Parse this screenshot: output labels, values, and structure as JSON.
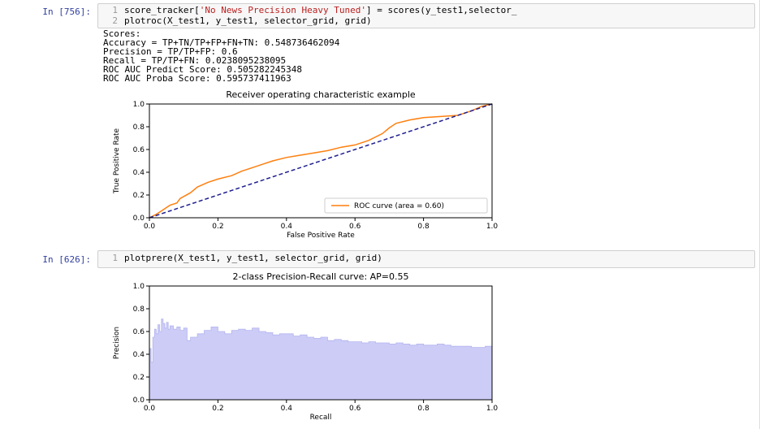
{
  "cell1": {
    "prompt": "In [756]:",
    "lines": [
      {
        "num": "1",
        "pre": "score_tracker[",
        "str": "'No News Precision Heavy Tuned'",
        "post": "] = scores(y_test1,selector_"
      },
      {
        "num": "2",
        "pre": "plotroc(X_test1, y_test1, selector_grid, grid)",
        "str": "",
        "post": ""
      }
    ],
    "output_lines": [
      "Scores:",
      "Accuracy = TP+TN/TP+FP+FN+TN: 0.548736462094",
      "Precision = TP/TP+FP: 0.6",
      "Recall = TP/TP+FN: 0.0238095238095",
      "ROC AUC Predict Score: 0.505282245348",
      "ROC AUC Proba Score: 0.595737411963"
    ]
  },
  "cell2": {
    "prompt": "In [626]:",
    "lines": [
      {
        "num": "1",
        "pre": "plotprere(X_test1, y_test1, selector_grid, grid)",
        "str": "",
        "post": ""
      }
    ]
  },
  "chart_data": [
    {
      "type": "line",
      "title": "Receiver operating characteristic example",
      "xlabel": "False Positive Rate",
      "ylabel": "True Positive Rate",
      "xlim": [
        0,
        1
      ],
      "ylim": [
        0,
        1
      ],
      "xticks": [
        "0.0",
        "0.2",
        "0.4",
        "0.6",
        "0.8",
        "1.0"
      ],
      "yticks": [
        "0.0",
        "0.2",
        "0.4",
        "0.6",
        "0.8",
        "1.0"
      ],
      "legend_position": "lower right",
      "grid": false,
      "series": [
        {
          "name": "ROC curve (area = 0.60)",
          "color": "#ff7f0e",
          "style": "solid",
          "x": [
            0,
            0.02,
            0.04,
            0.06,
            0.08,
            0.09,
            0.12,
            0.14,
            0.17,
            0.2,
            0.24,
            0.27,
            0.3,
            0.33,
            0.36,
            0.4,
            0.44,
            0.48,
            0.52,
            0.56,
            0.6,
            0.64,
            0.68,
            0.7,
            0.72,
            0.76,
            0.8,
            0.85,
            0.9,
            0.94,
            0.97,
            1.0
          ],
          "y": [
            0,
            0.03,
            0.07,
            0.11,
            0.13,
            0.17,
            0.22,
            0.27,
            0.31,
            0.34,
            0.37,
            0.41,
            0.44,
            0.47,
            0.5,
            0.53,
            0.55,
            0.57,
            0.59,
            0.62,
            0.64,
            0.68,
            0.74,
            0.79,
            0.83,
            0.86,
            0.88,
            0.89,
            0.9,
            0.94,
            0.98,
            1.0
          ]
        },
        {
          "name": "",
          "color": "#1f1f8f",
          "style": "dashed",
          "x": [
            0,
            1
          ],
          "y": [
            0,
            1
          ]
        }
      ]
    },
    {
      "type": "area",
      "title": "2-class Precision-Recall curve: AP=0.55",
      "xlabel": "Recall",
      "ylabel": "Precision",
      "xlim": [
        0,
        1
      ],
      "ylim": [
        0,
        1
      ],
      "xticks": [
        "0.0",
        "0.2",
        "0.4",
        "0.6",
        "0.8",
        "1.0"
      ],
      "yticks": [
        "0.0",
        "0.2",
        "0.4",
        "0.6",
        "0.8",
        "1.0"
      ],
      "grid": false,
      "series": [
        {
          "name": "",
          "color": "#ccccf7",
          "x": [
            0.0,
            0.005,
            0.01,
            0.015,
            0.02,
            0.025,
            0.03,
            0.035,
            0.04,
            0.045,
            0.05,
            0.055,
            0.06,
            0.07,
            0.08,
            0.09,
            0.1,
            0.11,
            0.12,
            0.14,
            0.16,
            0.18,
            0.2,
            0.22,
            0.24,
            0.26,
            0.28,
            0.3,
            0.32,
            0.34,
            0.36,
            0.38,
            0.4,
            0.42,
            0.44,
            0.46,
            0.48,
            0.5,
            0.52,
            0.54,
            0.56,
            0.58,
            0.6,
            0.62,
            0.64,
            0.66,
            0.68,
            0.7,
            0.72,
            0.74,
            0.76,
            0.78,
            0.8,
            0.82,
            0.84,
            0.86,
            0.88,
            0.9,
            0.92,
            0.94,
            0.96,
            0.98,
            1.0
          ],
          "y": [
            0.45,
            0.33,
            0.55,
            0.62,
            0.58,
            0.66,
            0.6,
            0.71,
            0.67,
            0.63,
            0.68,
            0.62,
            0.65,
            0.62,
            0.64,
            0.61,
            0.63,
            0.52,
            0.55,
            0.58,
            0.61,
            0.64,
            0.6,
            0.58,
            0.61,
            0.62,
            0.61,
            0.63,
            0.6,
            0.59,
            0.57,
            0.58,
            0.58,
            0.56,
            0.57,
            0.55,
            0.54,
            0.55,
            0.52,
            0.53,
            0.52,
            0.51,
            0.51,
            0.5,
            0.51,
            0.5,
            0.5,
            0.49,
            0.5,
            0.49,
            0.48,
            0.49,
            0.48,
            0.48,
            0.49,
            0.48,
            0.47,
            0.47,
            0.47,
            0.46,
            0.46,
            0.47,
            0.46
          ]
        }
      ]
    }
  ]
}
